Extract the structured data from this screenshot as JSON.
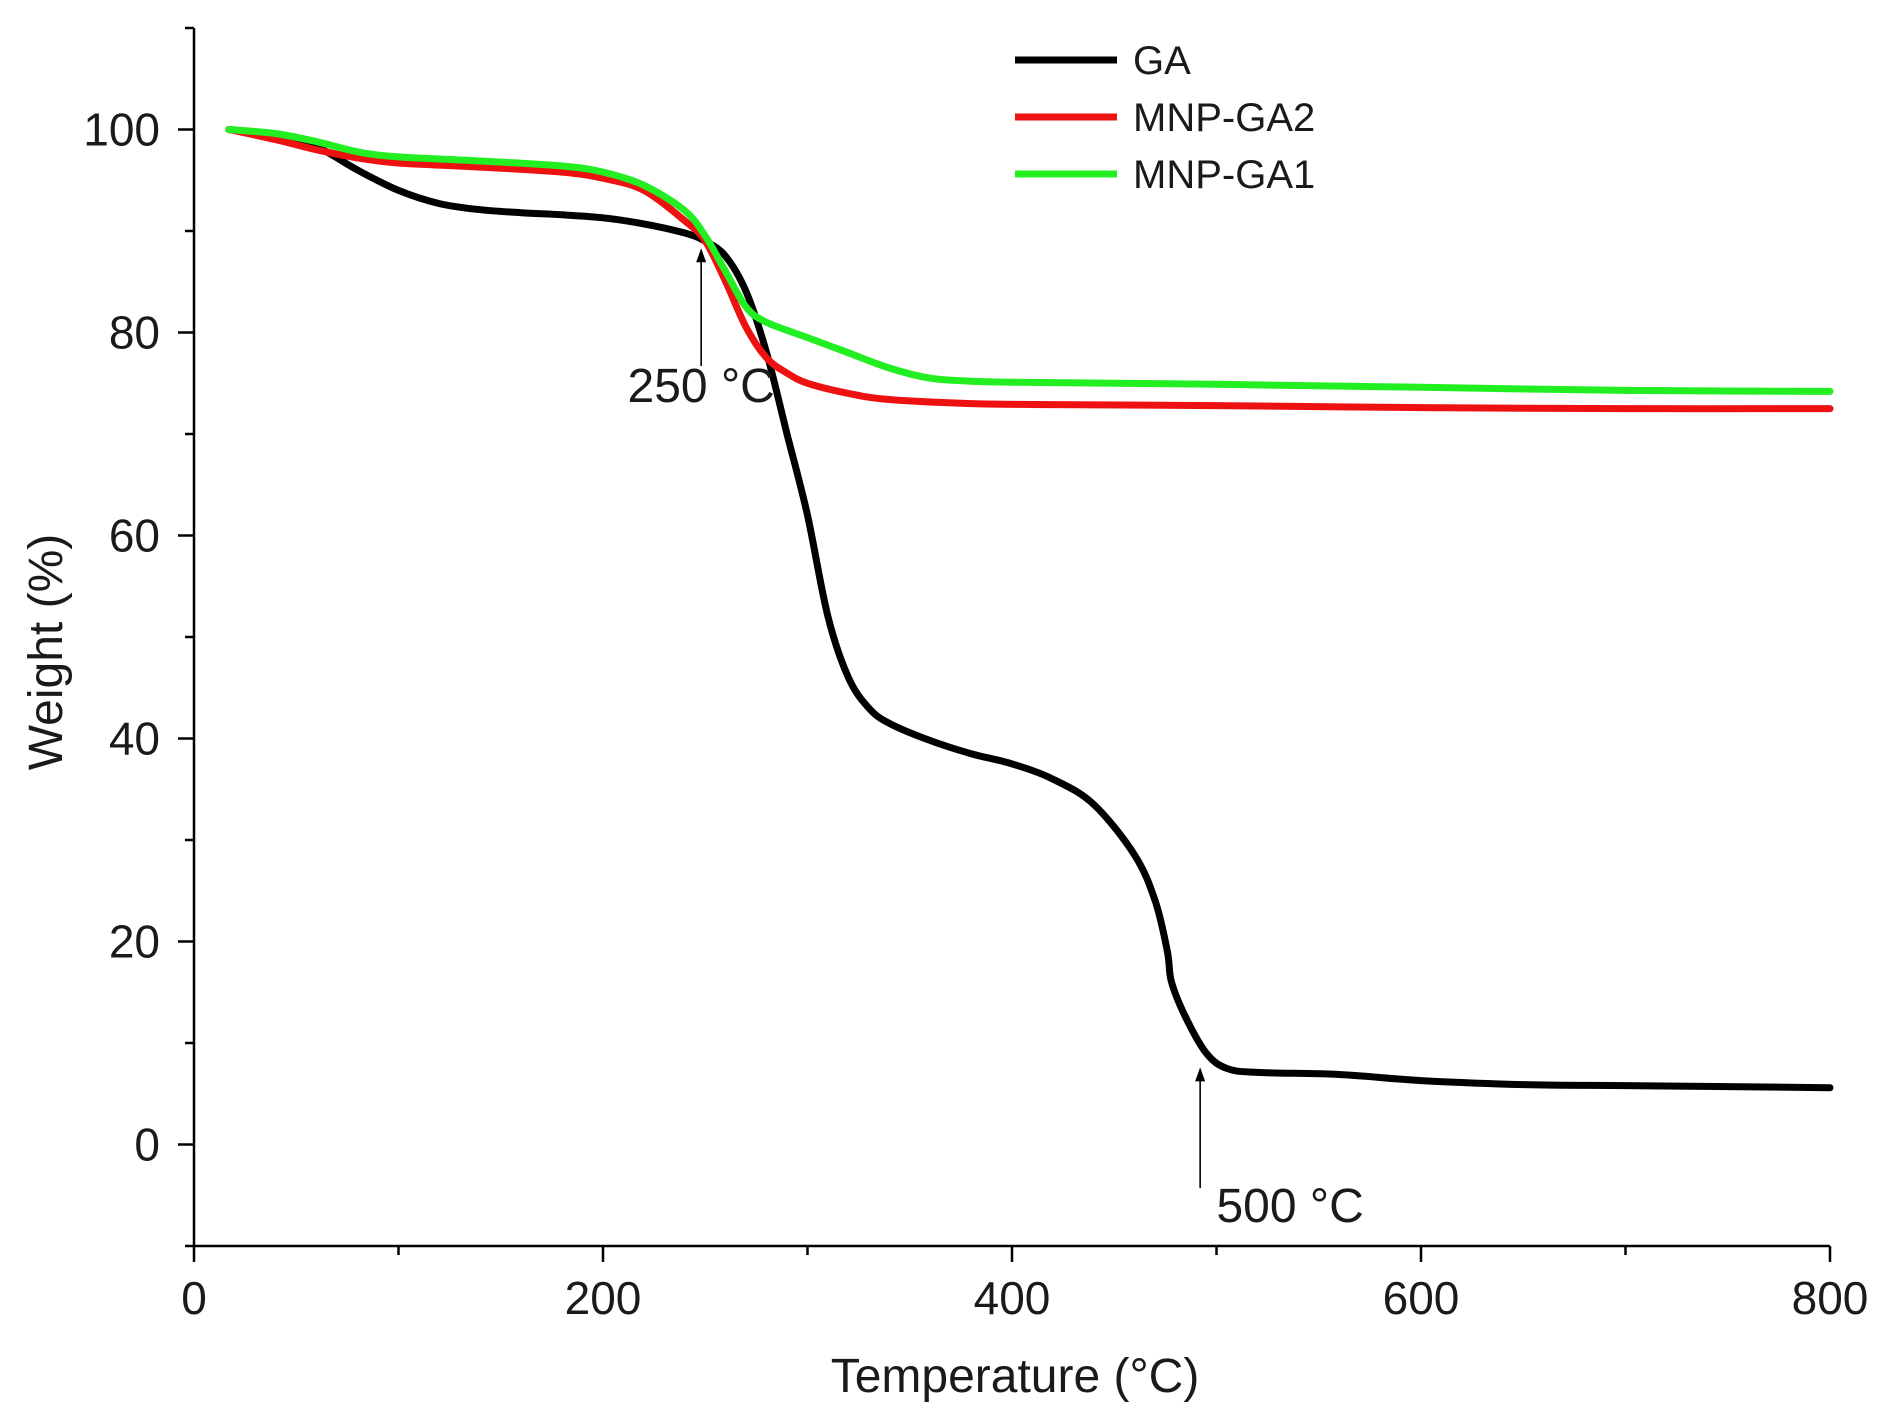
{
  "chart_data": {
    "type": "line",
    "title": "",
    "xlabel": "Temperature (°C)",
    "ylabel": "Weight (%)",
    "xlim": [
      0,
      800
    ],
    "ylim": [
      -10,
      110
    ],
    "x_ticks": [
      0,
      200,
      400,
      600,
      800
    ],
    "y_ticks": [
      0,
      20,
      40,
      60,
      80,
      100
    ],
    "x_minor_step": 100,
    "y_minor_step": 10,
    "legend_position": "top-center",
    "grid": false,
    "series": [
      {
        "name": "GA",
        "color": "#000000",
        "points": [
          [
            17,
            100
          ],
          [
            40,
            99.5
          ],
          [
            60,
            98.3
          ],
          [
            80,
            96
          ],
          [
            100,
            94
          ],
          [
            120,
            92.7
          ],
          [
            140,
            92.1
          ],
          [
            160,
            91.8
          ],
          [
            180,
            91.6
          ],
          [
            200,
            91.3
          ],
          [
            220,
            90.7
          ],
          [
            240,
            89.8
          ],
          [
            250,
            89
          ],
          [
            260,
            87.5
          ],
          [
            270,
            84
          ],
          [
            280,
            78
          ],
          [
            290,
            70
          ],
          [
            300,
            62
          ],
          [
            310,
            52
          ],
          [
            320,
            46
          ],
          [
            330,
            43
          ],
          [
            340,
            41.5
          ],
          [
            360,
            39.8
          ],
          [
            380,
            38.5
          ],
          [
            400,
            37.5
          ],
          [
            420,
            36
          ],
          [
            440,
            33.5
          ],
          [
            460,
            28.5
          ],
          [
            470,
            24
          ],
          [
            476,
            19
          ],
          [
            478,
            16
          ],
          [
            485,
            12.5
          ],
          [
            495,
            9
          ],
          [
            505,
            7.5
          ],
          [
            520,
            7.1
          ],
          [
            560,
            6.9
          ],
          [
            600,
            6.3
          ],
          [
            650,
            5.9
          ],
          [
            700,
            5.8
          ],
          [
            750,
            5.7
          ],
          [
            800,
            5.6
          ]
        ]
      },
      {
        "name": "MNP-GA2",
        "color": "#ee1111",
        "points": [
          [
            17,
            100
          ],
          [
            40,
            99
          ],
          [
            60,
            98
          ],
          [
            80,
            97.2
          ],
          [
            100,
            96.7
          ],
          [
            140,
            96.3
          ],
          [
            180,
            95.8
          ],
          [
            200,
            95.2
          ],
          [
            220,
            94
          ],
          [
            240,
            91
          ],
          [
            250,
            89
          ],
          [
            260,
            85
          ],
          [
            270,
            80.5
          ],
          [
            280,
            77.5
          ],
          [
            290,
            76
          ],
          [
            300,
            75
          ],
          [
            320,
            74
          ],
          [
            340,
            73.4
          ],
          [
            380,
            73
          ],
          [
            420,
            72.9
          ],
          [
            500,
            72.8
          ],
          [
            600,
            72.6
          ],
          [
            700,
            72.5
          ],
          [
            800,
            72.5
          ]
        ]
      },
      {
        "name": "MNP-GA1",
        "color": "#22ee22",
        "points": [
          [
            17,
            100
          ],
          [
            40,
            99.6
          ],
          [
            60,
            98.8
          ],
          [
            80,
            97.8
          ],
          [
            100,
            97.3
          ],
          [
            140,
            96.9
          ],
          [
            180,
            96.4
          ],
          [
            200,
            95.8
          ],
          [
            220,
            94.5
          ],
          [
            240,
            92
          ],
          [
            250,
            89.5
          ],
          [
            260,
            86
          ],
          [
            270,
            82.5
          ],
          [
            280,
            81
          ],
          [
            300,
            79.5
          ],
          [
            320,
            78
          ],
          [
            340,
            76.5
          ],
          [
            360,
            75.5
          ],
          [
            380,
            75.2
          ],
          [
            400,
            75.1
          ],
          [
            450,
            75
          ],
          [
            500,
            74.9
          ],
          [
            600,
            74.6
          ],
          [
            700,
            74.3
          ],
          [
            800,
            74.2
          ]
        ]
      }
    ],
    "annotations": [
      {
        "label": "250 °C",
        "x": 248,
        "y_tip": 88.3,
        "y_tail": 76.7
      },
      {
        "label": "500 °C",
        "x": 492,
        "y_tip": 7.6,
        "y_tail": -4.3
      }
    ]
  }
}
